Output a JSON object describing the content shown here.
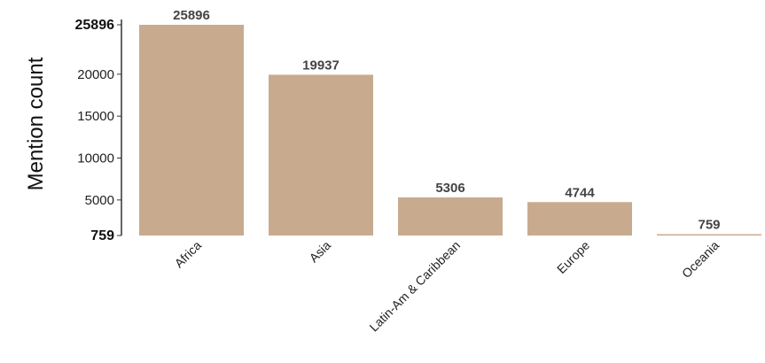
{
  "chart_data": {
    "type": "bar",
    "title": "",
    "xlabel": "",
    "ylabel": "Mention count",
    "categories": [
      "Africa",
      "Asia",
      "Latin-Am & Caribbean",
      "Europe",
      "Oceania"
    ],
    "values": [
      25896,
      19937,
      5306,
      4744,
      759
    ],
    "data_labels": [
      "25896",
      "19937",
      "5306",
      "4744",
      "759"
    ],
    "ylim": [
      759,
      25896
    ],
    "yticks": [
      759,
      5000,
      10000,
      15000,
      20000,
      25896
    ],
    "ytick_labels": [
      "759",
      "5000",
      "10000",
      "15000",
      "20000",
      "25896"
    ],
    "bold_ticks": [
      "759",
      "25896"
    ],
    "bar_color": "#c8ab8e",
    "axis_color": "#333333",
    "grid": false,
    "legend": "none"
  }
}
